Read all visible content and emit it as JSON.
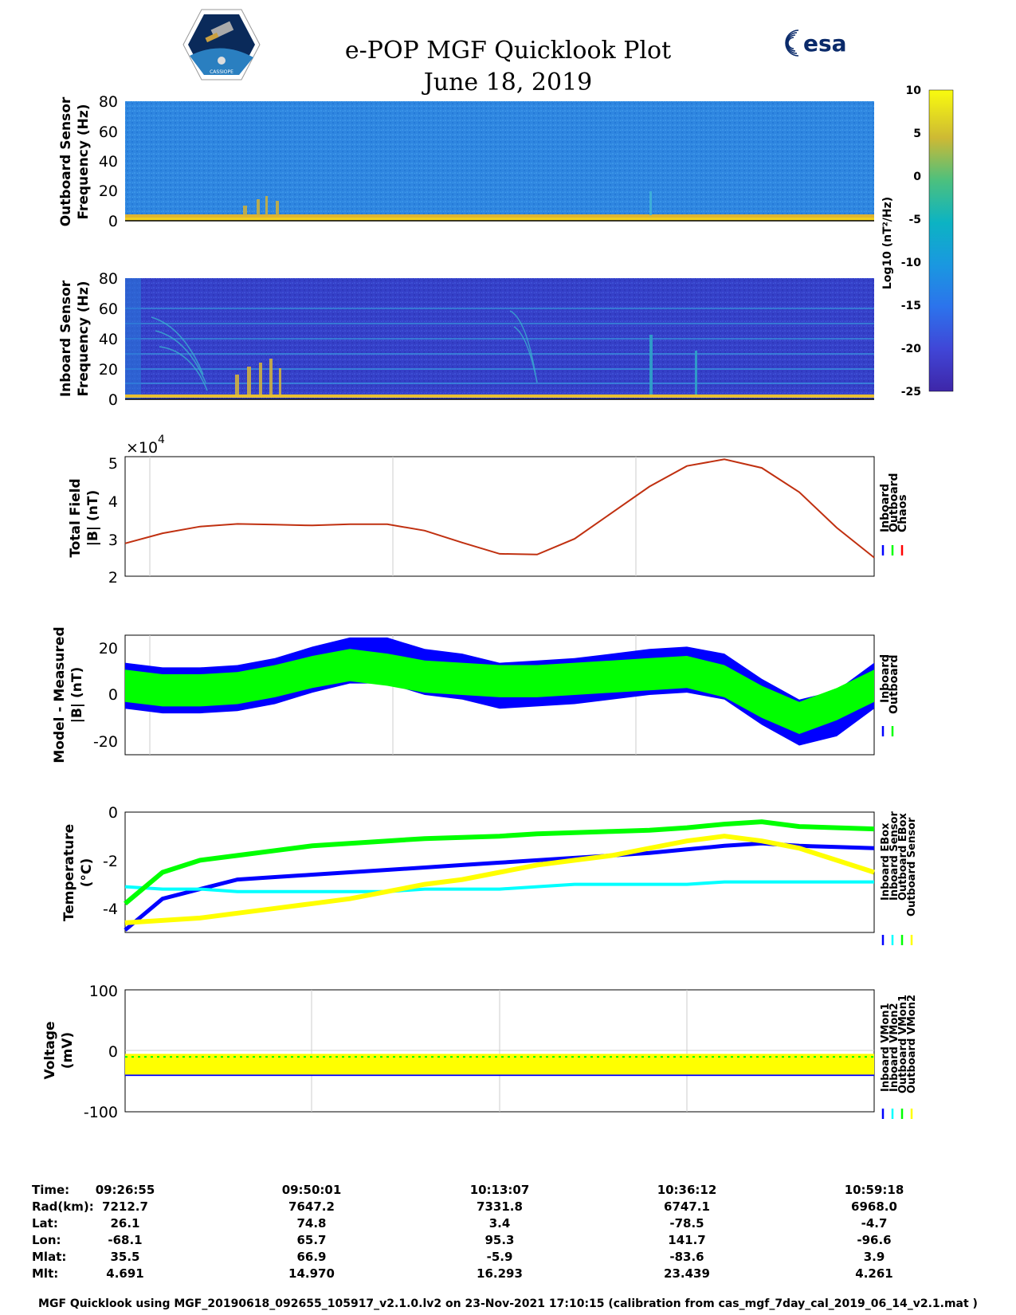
{
  "header": {
    "title_line1": "e-POP MGF Quicklook Plot",
    "title_line2": "June 18, 2019",
    "left_logo_text": "CASSIOPE",
    "right_logo_text": "esa"
  },
  "colorbar": {
    "ticks": [
      10,
      5,
      0,
      -5,
      -10,
      -15,
      -20,
      -25
    ],
    "label": "Log10 (nT²/Hz)"
  },
  "panels": {
    "outboard_spec": {
      "ylabel1": "Outboard Sensor",
      "ylabel2": "Frequency (Hz)",
      "yticks": [
        80,
        60,
        40,
        20,
        0
      ]
    },
    "inboard_spec": {
      "ylabel1": "Inboard Sensor",
      "ylabel2": "Frequency (Hz)",
      "yticks": [
        80,
        60,
        40,
        20,
        0
      ]
    },
    "total_field": {
      "ylabel1": "Total Field",
      "ylabel2": "|B| (nT)",
      "yticks": [
        5,
        4,
        3,
        2
      ],
      "exponent_base": "×10",
      "exponent_power": "4",
      "legend": [
        "Inboard",
        "Outboard",
        "Chaos"
      ]
    },
    "model_diff": {
      "ylabel1": "Model - Measured",
      "ylabel2": "|B| (nT)",
      "yticks": [
        20,
        0,
        -20
      ],
      "legend": [
        "Inboard",
        "Outboard"
      ]
    },
    "temperature": {
      "ylabel1": "Temperature",
      "ylabel2": "(°C)",
      "yticks": [
        0,
        -2,
        -4
      ],
      "legend": [
        "Inboard EBox",
        "Inboard Sensor",
        "Outboard EBox",
        "Outboard Sensor"
      ]
    },
    "voltage": {
      "ylabel1": "Voltage",
      "ylabel2": "(mV)",
      "yticks": [
        100,
        0,
        -100
      ],
      "legend": [
        "Inboard VMon1",
        "Inboard VMon2",
        "Outboard VMon1",
        "Outboard VMon2"
      ]
    }
  },
  "chart_data": [
    {
      "type": "heatmap",
      "title": "Outboard Sensor",
      "ylabel": "Frequency (Hz)",
      "ylim": [
        0,
        80
      ],
      "clim": [
        -25,
        10
      ],
      "x_range": [
        "09:26:55",
        "10:59:18"
      ]
    },
    {
      "type": "heatmap",
      "title": "Inboard Sensor",
      "ylabel": "Frequency (Hz)",
      "ylim": [
        0,
        80
      ],
      "clim": [
        -25,
        10
      ],
      "x_range": [
        "09:26:55",
        "10:59:18"
      ]
    },
    {
      "type": "line",
      "title": "Total Field",
      "ylabel": "|B| (nT)",
      "ylim": [
        20000,
        52000
      ],
      "x": [
        0,
        0.05,
        0.1,
        0.15,
        0.2,
        0.25,
        0.3,
        0.35,
        0.4,
        0.45,
        0.5,
        0.55,
        0.6,
        0.65,
        0.7,
        0.75,
        0.8,
        0.85,
        0.9,
        0.95,
        1.0
      ],
      "series": [
        {
          "name": "Chaos",
          "values": [
            28800,
            31500,
            33300,
            34000,
            33800,
            33600,
            33900,
            33900,
            32200,
            29000,
            26000,
            25800,
            30000,
            37000,
            44000,
            49500,
            51300,
            49000,
            42500,
            33000,
            25000
          ]
        }
      ]
    },
    {
      "type": "line",
      "title": "Model - Measured",
      "ylabel": "|B| (nT)",
      "ylim": [
        -26,
        26
      ],
      "x": [
        0,
        0.05,
        0.1,
        0.15,
        0.2,
        0.25,
        0.3,
        0.35,
        0.4,
        0.45,
        0.5,
        0.55,
        0.6,
        0.65,
        0.7,
        0.75,
        0.8,
        0.85,
        0.9,
        0.95,
        1.0
      ],
      "series": [
        {
          "name": "Inboard",
          "values": [
            4,
            2,
            2,
            3,
            6,
            11,
            15,
            15,
            10,
            8,
            4,
            5,
            6,
            8,
            10,
            11,
            8,
            -3,
            -12,
            -8,
            4
          ]
        },
        {
          "name": "Outboard",
          "values": [
            4,
            2,
            2,
            3,
            6,
            10,
            13,
            11,
            8,
            7,
            6,
            6,
            7,
            8,
            9,
            10,
            6,
            -3,
            -10,
            -4,
            4
          ]
        }
      ]
    },
    {
      "type": "line",
      "title": "Temperature",
      "ylabel": "(°C)",
      "ylim": [
        -5,
        0
      ],
      "x": [
        0,
        0.05,
        0.1,
        0.15,
        0.2,
        0.25,
        0.3,
        0.35,
        0.4,
        0.45,
        0.5,
        0.55,
        0.6,
        0.65,
        0.7,
        0.75,
        0.8,
        0.85,
        0.9,
        0.95,
        1.0
      ],
      "series": [
        {
          "name": "Inboard EBox",
          "values": [
            -4.9,
            -3.6,
            -3.2,
            -2.8,
            -2.7,
            -2.6,
            -2.5,
            -2.4,
            -2.3,
            -2.2,
            -2.1,
            -2.0,
            -1.9,
            -1.8,
            -1.7,
            -1.55,
            -1.4,
            -1.3,
            -1.4,
            -1.45,
            -1.5
          ]
        },
        {
          "name": "Inboard Sensor",
          "values": [
            -3.1,
            -3.2,
            -3.2,
            -3.3,
            -3.3,
            -3.3,
            -3.3,
            -3.3,
            -3.2,
            -3.2,
            -3.2,
            -3.1,
            -3.0,
            -3.0,
            -3.0,
            -3.0,
            -2.9,
            -2.9,
            -2.9,
            -2.9,
            -2.9
          ]
        },
        {
          "name": "Outboard EBox",
          "values": [
            -3.8,
            -2.5,
            -2.0,
            -1.8,
            -1.6,
            -1.4,
            -1.3,
            -1.2,
            -1.1,
            -1.05,
            -1.0,
            -0.9,
            -0.85,
            -0.8,
            -0.75,
            -0.65,
            -0.5,
            -0.4,
            -0.6,
            -0.65,
            -0.7
          ]
        },
        {
          "name": "Outboard Sensor",
          "values": [
            -4.6,
            -4.5,
            -4.4,
            -4.2,
            -4.0,
            -3.8,
            -3.6,
            -3.3,
            -3.0,
            -2.8,
            -2.5,
            -2.2,
            -2.0,
            -1.8,
            -1.5,
            -1.2,
            -1.0,
            -1.2,
            -1.5,
            -2.0,
            -2.5
          ]
        }
      ]
    },
    {
      "type": "line",
      "title": "Voltage",
      "ylabel": "(mV)",
      "ylim": [
        -100,
        100
      ],
      "x": [
        0,
        0.25,
        0.5,
        0.75,
        1.0
      ],
      "series": [
        {
          "name": "Inboard VMon1",
          "values": [
            -40,
            -40,
            -40,
            -40,
            -40
          ]
        },
        {
          "name": "Inboard VMon2",
          "values": [
            -5,
            -5,
            -5,
            -5,
            -5
          ]
        },
        {
          "name": "Outboard VMon1",
          "values": [
            -10,
            -10,
            -10,
            -10,
            -10
          ]
        },
        {
          "name": "Outboard VMon2",
          "values": [
            -15,
            -15,
            -15,
            -15,
            -15
          ]
        }
      ]
    }
  ],
  "info_table": {
    "labels": [
      "Time:",
      "Rad(km):",
      "Lat:",
      "Lon:",
      "Mlat:",
      "Mlt:"
    ],
    "columns": [
      [
        "09:26:55",
        "7212.7",
        "26.1",
        "-68.1",
        "35.5",
        "4.691"
      ],
      [
        "09:50:01",
        "7647.2",
        "74.8",
        "65.7",
        "66.9",
        "14.970"
      ],
      [
        "10:13:07",
        "7331.8",
        "3.4",
        "95.3",
        "-5.9",
        "16.293"
      ],
      [
        "10:36:12",
        "6747.1",
        "-78.5",
        "141.7",
        "-83.6",
        "23.439"
      ],
      [
        "10:59:18",
        "6968.0",
        "-4.7",
        "-96.6",
        "3.9",
        "4.261"
      ]
    ]
  },
  "footer": "MGF Quicklook using MGF_20190618_092655_105917_v2.1.0.lv2 on 23-Nov-2021 17:10:15 (calibration from cas_mgf_7day_cal_2019_06_14_v2.1.mat )",
  "colors": {
    "inboard": "#0000ff",
    "outboard": "#00ff00",
    "chaos": "#ff0000",
    "cyan": "#00ffff",
    "yellow": "#ffff00"
  }
}
